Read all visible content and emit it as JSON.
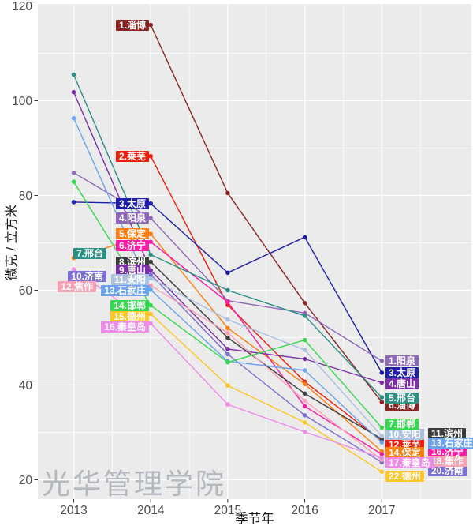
{
  "chart_data": {
    "type": "line",
    "title": "",
    "xlabel": "季节年",
    "ylabel": "微克 / 立方米",
    "watermark": "光华管理学院",
    "panel_bg": "#ebebeb",
    "grid_color": "#ffffff",
    "x_ticks": [
      2013,
      2014,
      2015,
      2016,
      2017
    ],
    "y_ticks": [
      20,
      40,
      60,
      80,
      100,
      120
    ],
    "x_minor": [
      2013.5,
      2014.5,
      2015.5,
      2016.5,
      2017.5
    ],
    "y_minor": [
      30,
      50,
      70,
      90,
      110
    ],
    "xlim": [
      2012.53,
      2018.16
    ],
    "ylim": [
      16.6,
      120.4
    ],
    "legend_position": "labels-on-chart",
    "series": [
      {
        "name": "淄博",
        "en": "zibo",
        "color": "#8b2323",
        "points": {
          "2014": 116,
          "2015": 80.5,
          "2016": 57.3,
          "2017": 36.4
        },
        "label_left": {
          "text": "1.淄博",
          "at_value": 116
        },
        "label_right": {
          "text": "6.淄博",
          "col": 1,
          "at_value": 35.7
        }
      },
      {
        "name": "莱芜",
        "en": "laiwu",
        "color": "#ee1c0c",
        "points": {
          "2014": 88.3,
          "2015": 56.9,
          "2016": 40.7,
          "2017": 28.2
        },
        "label_left": {
          "text": "2.莱芜",
          "at_value": 88.3
        },
        "label_right": {
          "text": "12.莱芜",
          "col": 1,
          "at_value": 27.5
        }
      },
      {
        "name": "太原",
        "en": "taiyuan",
        "color": "#1f1fa8",
        "points": {
          "2013": 78.6,
          "2014": 78.3,
          "2015": 63.7,
          "2016": 71.2,
          "2017": 42.6
        },
        "label_left": {
          "text": "3.太原",
          "at_value": 78.3
        },
        "label_right": {
          "text": "3.太原",
          "col": 1,
          "at_value": 42.6
        }
      },
      {
        "name": "阳泉",
        "en": "yangquan",
        "color": "#8d68b8",
        "points": {
          "2013": 84.8,
          "2014": 75.2,
          "2015": 57.8,
          "2016": 55.2,
          "2017": 45.1
        },
        "label_left": {
          "text": "4.阳泉",
          "at_value": 75.2
        },
        "label_right": {
          "text": "1.阳泉",
          "col": 1,
          "at_value": 45.1
        }
      },
      {
        "name": "保定",
        "en": "baoding",
        "color": "#ff7f0e",
        "points": {
          "2013": 66.8,
          "2014": 71.9,
          "2015": 52.0,
          "2016": 40.2,
          "2017": 26.0
        },
        "label_left": {
          "text": "5.保定",
          "at_value": 71.9
        },
        "label_right": {
          "text": "14.保定",
          "col": 1,
          "at_value": 25.7
        }
      },
      {
        "name": "济宁",
        "en": "jining",
        "color": "#fb1ba6",
        "points": {
          "2014": 70.2,
          "2015": 57.5,
          "2016": 35.5,
          "2017": 25.4
        },
        "label_left": {
          "text": "6.济宁",
          "at_value": 69.5
        },
        "label_right": {
          "text": "16.济宁",
          "col": 2,
          "at_value": 25.9
        }
      },
      {
        "name": "邢台",
        "en": "xingtai",
        "color": "#2a8f85",
        "points": {
          "2013": 105.5,
          "2014": 67.5,
          "2015": 60.0,
          "2016": 54.6,
          "2017": 37.4
        },
        "label_left": {
          "text": "7.邢台",
          "at_value": 67.7,
          "x_left": 93
        },
        "label_right": {
          "text": "5.邢台",
          "col": 1,
          "at_value": 37.3
        }
      },
      {
        "name": "滨州",
        "en": "binzhou",
        "color": "#3c3c3c",
        "points": {
          "2014": 66.0,
          "2015": 50.0,
          "2016": 38.2,
          "2017": 28.6
        },
        "label_left": {
          "text": "8.滨州",
          "at_value": 66.0
        },
        "label_right": {
          "text": "11.滨州",
          "col": 2,
          "at_value": 29.8
        }
      },
      {
        "name": "唐山",
        "en": "tangshan",
        "color": "#7c2fa8",
        "points": {
          "2013": 101.8,
          "2014": 64.2,
          "2015": 47.6,
          "2016": 45.5,
          "2017": 40.5
        },
        "label_left": {
          "text": "9.唐山",
          "at_value": 64.2
        },
        "label_right": {
          "text": "4.唐山",
          "col": 1,
          "at_value": 40.3
        }
      },
      {
        "name": "济南",
        "en": "jinan",
        "color": "#7b6fd8",
        "points": {
          "2014": 63.3,
          "2015": 46.5,
          "2016": 33.6,
          "2017": 23.7
        },
        "label_left": {
          "text": "10.济南",
          "at_value": 63.0,
          "x_right": 135
        },
        "label_right": {
          "text": "20.济南",
          "col": 2,
          "at_value": 22.0
        }
      },
      {
        "name": "安阳",
        "en": "anyang",
        "color": "#aac1e0",
        "points": {
          "2014": 62.5,
          "2015": 53.8,
          "2016": 47.4,
          "2017": 29.2
        },
        "label_left": {
          "text": "11.安阳",
          "at_value": 62.3
        },
        "label_right": {
          "text": "10.安阳",
          "col": 1,
          "at_value": 29.6
        }
      },
      {
        "name": "焦作",
        "en": "jiaozuo",
        "color": "#f8a0b4",
        "points": {
          "2014": 61.0,
          "2015": 51.0,
          "2016": 36.7,
          "2017": 24.2
        },
        "label_left": {
          "text": "12.焦作",
          "at_value": 60.8,
          "x_right": 122
        },
        "label_right": {
          "text": "18.焦作",
          "col": 2,
          "at_value": 24.0
        }
      },
      {
        "name": "石家庄",
        "en": "shijiazhuang",
        "color": "#6ba3f0",
        "points": {
          "2013": 96.3,
          "2014": 60.1,
          "2015": 45.0,
          "2016": 43.1,
          "2017": 27.9
        },
        "label_left": {
          "text": "13.石家庄",
          "at_value": 60.0
        },
        "label_right": {
          "text": "13.石家庄",
          "col": 2,
          "at_value": 27.8
        }
      },
      {
        "name": "邯郸",
        "en": "handan",
        "color": "#35d94e",
        "points": {
          "2013": 82.9,
          "2014": 56.8,
          "2015": 44.8,
          "2016": 49.5,
          "2017": 31.0
        },
        "label_left": {
          "text": "14.邯郸",
          "at_value": 56.7
        },
        "label_right": {
          "text": "7.邯郸",
          "col": 1,
          "at_value": 31.8
        }
      },
      {
        "name": "德州",
        "en": "dezhou",
        "color": "#ffc627",
        "points": {
          "2014": 55.0,
          "2015": 39.9,
          "2016": 32.1,
          "2017": 21.7
        },
        "label_left": {
          "text": "15.德州",
          "at_value": 54.5
        },
        "label_right": {
          "text": "22.德州",
          "col": 1,
          "at_value": 20.7
        }
      },
      {
        "name": "秦皇岛",
        "en": "qinhuangdao",
        "color": "#ee8ae8",
        "points": {
          "2013": 64.4,
          "2014": 53.0,
          "2015": 35.9,
          "2016": 30.1,
          "2017": 24.6
        },
        "label_left": {
          "text": "16.秦皇岛",
          "at_value": 52.3
        },
        "label_right": {
          "text": "17.秦皇岛",
          "col": 1,
          "at_value": 23.6
        }
      }
    ]
  }
}
